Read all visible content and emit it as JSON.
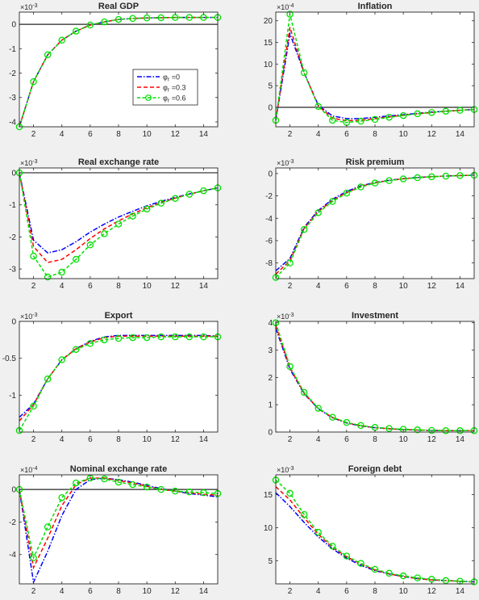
{
  "colors": {
    "background": "#f0f0f0",
    "axes_bg": "#ffffff",
    "axis": "#262626",
    "zero_line": "#262626",
    "series": [
      "#0000ff",
      "#ff0000",
      "#00e000"
    ]
  },
  "legend": {
    "placement": "inside-right",
    "entries": [
      "φ",
      "φ",
      "φ"
    ],
    "subscripts": [
      "r",
      "r",
      "r"
    ],
    "values": [
      "=0",
      "=0.3",
      "=0.6"
    ]
  },
  "chart_data": [
    {
      "type": "line",
      "title": "Real GDP",
      "exponent": [
        "×10",
        "-3"
      ],
      "x": [
        1,
        2,
        3,
        4,
        5,
        6,
        7,
        8,
        9,
        10,
        11,
        12,
        13,
        14,
        15
      ],
      "xlim": [
        1,
        15
      ],
      "ylim": [
        -4.2,
        0.5
      ],
      "xticks": [
        2,
        4,
        6,
        8,
        10,
        12,
        14
      ],
      "xtick_labels": [
        "2",
        "4",
        "6",
        "8",
        "10",
        "12",
        "14"
      ],
      "yticks": [
        -4,
        -3,
        -2,
        -1,
        0
      ],
      "ytick_labels": [
        "-4",
        "-3",
        "-2",
        "-1",
        "0"
      ],
      "zero_line": true,
      "legend": true,
      "series": [
        {
          "values": [
            -4.2,
            -2.35,
            -1.25,
            -0.65,
            -0.28,
            -0.03,
            0.1,
            0.2,
            0.24,
            0.26,
            0.27,
            0.28,
            0.28,
            0.28,
            0.28
          ]
        },
        {
          "values": [
            -4.2,
            -2.35,
            -1.25,
            -0.65,
            -0.28,
            -0.03,
            0.1,
            0.2,
            0.24,
            0.26,
            0.27,
            0.28,
            0.28,
            0.28,
            0.28
          ]
        },
        {
          "values": [
            -4.2,
            -2.35,
            -1.25,
            -0.65,
            -0.28,
            -0.03,
            0.1,
            0.2,
            0.24,
            0.26,
            0.27,
            0.28,
            0.28,
            0.28,
            0.28
          ]
        }
      ]
    },
    {
      "type": "line",
      "title": "Inflation",
      "exponent": [
        "×10",
        "-4"
      ],
      "x": [
        1,
        2,
        3,
        4,
        5,
        6,
        7,
        8,
        9,
        10,
        11,
        12,
        13,
        14,
        15
      ],
      "xlim": [
        1,
        15
      ],
      "ylim": [
        -4.5,
        22
      ],
      "xticks": [
        2,
        4,
        6,
        8,
        10,
        12,
        14
      ],
      "xtick_labels": [
        "2",
        "4",
        "6",
        "8",
        "10",
        "12",
        "14"
      ],
      "yticks": [
        -5,
        0,
        5,
        10,
        15,
        20
      ],
      "ytick_labels": [
        "-5",
        "0",
        "5",
        "10",
        "15",
        "20"
      ],
      "zero_line": true,
      "legend": false,
      "series": [
        {
          "values": [
            -3,
            17,
            8,
            0.5,
            -2,
            -2.6,
            -2.6,
            -2.3,
            -2,
            -1.7,
            -1.4,
            -1.1,
            -0.9,
            -0.7,
            -0.5
          ]
        },
        {
          "values": [
            -3,
            18.5,
            8,
            0.3,
            -2.5,
            -3.1,
            -3,
            -2.6,
            -2.2,
            -1.8,
            -1.5,
            -1.2,
            -0.9,
            -0.7,
            -0.5
          ]
        },
        {
          "values": [
            -3,
            21.5,
            8,
            0.2,
            -3,
            -3.5,
            -3.2,
            -2.8,
            -2.3,
            -1.9,
            -1.5,
            -1.2,
            -0.9,
            -0.7,
            -0.5
          ]
        }
      ]
    },
    {
      "type": "line",
      "title": "Real exchange rate",
      "exponent": [
        "×10",
        "-3"
      ],
      "x": [
        1,
        2,
        3,
        4,
        5,
        6,
        7,
        8,
        9,
        10,
        11,
        12,
        13,
        14,
        15
      ],
      "xlim": [
        1,
        15
      ],
      "ylim": [
        -3.3,
        0.15
      ],
      "xticks": [
        2,
        4,
        6,
        8,
        10,
        12,
        14
      ],
      "xtick_labels": [
        "2",
        "4",
        "6",
        "8",
        "10",
        "12",
        "14"
      ],
      "yticks": [
        -3,
        -2,
        -1,
        0
      ],
      "ytick_labels": [
        "-3",
        "-2",
        "-1",
        "0"
      ],
      "zero_line": true,
      "legend": false,
      "series": [
        {
          "values": [
            0,
            -2.1,
            -2.5,
            -2.4,
            -2.15,
            -1.85,
            -1.6,
            -1.38,
            -1.2,
            -1.03,
            -0.89,
            -0.77,
            -0.66,
            -0.56,
            -0.47
          ]
        },
        {
          "values": [
            0,
            -2.3,
            -2.8,
            -2.7,
            -2.4,
            -2.05,
            -1.75,
            -1.5,
            -1.28,
            -1.09,
            -0.93,
            -0.79,
            -0.67,
            -0.56,
            -0.47
          ]
        },
        {
          "values": [
            0,
            -2.6,
            -3.25,
            -3.1,
            -2.7,
            -2.25,
            -1.9,
            -1.6,
            -1.35,
            -1.13,
            -0.95,
            -0.8,
            -0.67,
            -0.56,
            -0.47
          ]
        }
      ]
    },
    {
      "type": "line",
      "title": "Risk premium",
      "exponent": [
        "×10",
        "-3"
      ],
      "x": [
        1,
        2,
        3,
        4,
        5,
        6,
        7,
        8,
        9,
        10,
        11,
        12,
        13,
        14,
        15
      ],
      "xlim": [
        1,
        15
      ],
      "ylim": [
        -9.4,
        0.5
      ],
      "xticks": [
        2,
        4,
        6,
        8,
        10,
        12,
        14
      ],
      "xtick_labels": [
        "2",
        "4",
        "6",
        "8",
        "10",
        "12",
        "14"
      ],
      "yticks": [
        -8,
        -6,
        -4,
        -2,
        0
      ],
      "ytick_labels": [
        "-8",
        "-6",
        "-4",
        "-2",
        "0"
      ],
      "zero_line": false,
      "legend": false,
      "series": [
        {
          "values": [
            -8.7,
            -7.6,
            -4.8,
            -3.3,
            -2.3,
            -1.6,
            -1.1,
            -0.8,
            -0.6,
            -0.45,
            -0.35,
            -0.28,
            -0.22,
            -0.18,
            -0.15
          ]
        },
        {
          "values": [
            -9,
            -7.8,
            -4.9,
            -3.4,
            -2.4,
            -1.7,
            -1.15,
            -0.82,
            -0.62,
            -0.47,
            -0.36,
            -0.28,
            -0.22,
            -0.18,
            -0.15
          ]
        },
        {
          "values": [
            -9.3,
            -8,
            -5,
            -3.5,
            -2.5,
            -1.75,
            -1.2,
            -0.85,
            -0.63,
            -0.48,
            -0.37,
            -0.29,
            -0.23,
            -0.18,
            -0.15
          ]
        }
      ]
    },
    {
      "type": "line",
      "title": "Export",
      "exponent": [
        "×10",
        "-3"
      ],
      "x": [
        1,
        2,
        3,
        4,
        5,
        6,
        7,
        8,
        9,
        10,
        11,
        12,
        13,
        14,
        15
      ],
      "xlim": [
        1,
        15
      ],
      "ylim": [
        -1.5,
        0
      ],
      "xticks": [
        2,
        4,
        6,
        8,
        10,
        12,
        14
      ],
      "xtick_labels": [
        "2",
        "4",
        "6",
        "8",
        "10",
        "12",
        "14"
      ],
      "yticks": [
        -1,
        -0.5,
        0
      ],
      "ytick_labels": [
        "-1",
        "-0.5",
        "0"
      ],
      "zero_line": false,
      "legend": false,
      "series": [
        {
          "values": [
            -1.3,
            -1.12,
            -0.78,
            -0.52,
            -0.37,
            -0.27,
            -0.21,
            -0.19,
            -0.19,
            -0.19,
            -0.19,
            -0.19,
            -0.19,
            -0.19,
            -0.2
          ]
        },
        {
          "values": [
            -1.35,
            -1.13,
            -0.78,
            -0.52,
            -0.37,
            -0.28,
            -0.22,
            -0.2,
            -0.2,
            -0.2,
            -0.2,
            -0.2,
            -0.2,
            -0.2,
            -0.2
          ]
        },
        {
          "values": [
            -1.48,
            -1.15,
            -0.78,
            -0.52,
            -0.38,
            -0.3,
            -0.25,
            -0.23,
            -0.22,
            -0.22,
            -0.21,
            -0.21,
            -0.21,
            -0.21,
            -0.21
          ]
        }
      ]
    },
    {
      "type": "line",
      "title": "Investment",
      "exponent": [
        "×10",
        "-3"
      ],
      "x": [
        1,
        2,
        3,
        4,
        5,
        6,
        7,
        8,
        9,
        10,
        11,
        12,
        13,
        14,
        15
      ],
      "xlim": [
        1,
        15
      ],
      "ylim": [
        0,
        4.05
      ],
      "xticks": [
        2,
        4,
        6,
        8,
        10,
        12,
        14
      ],
      "xtick_labels": [
        "2",
        "4",
        "6",
        "8",
        "10",
        "12",
        "14"
      ],
      "yticks": [
        0,
        1,
        2,
        3,
        4
      ],
      "ytick_labels": [
        "0",
        "1",
        "2",
        "3",
        "4"
      ],
      "zero_line": false,
      "legend": false,
      "series": [
        {
          "values": [
            3.8,
            2.3,
            1.4,
            0.85,
            0.52,
            0.33,
            0.22,
            0.16,
            0.12,
            0.09,
            0.07,
            0.06,
            0.05,
            0.05,
            0.05
          ]
        },
        {
          "values": [
            3.9,
            2.35,
            1.42,
            0.86,
            0.53,
            0.34,
            0.23,
            0.16,
            0.12,
            0.09,
            0.07,
            0.06,
            0.05,
            0.05,
            0.05
          ]
        },
        {
          "values": [
            4.0,
            2.4,
            1.45,
            0.87,
            0.54,
            0.35,
            0.24,
            0.17,
            0.13,
            0.1,
            0.08,
            0.06,
            0.05,
            0.05,
            0.05
          ]
        }
      ]
    },
    {
      "type": "line",
      "title": "Nominal exchange rate",
      "exponent": [
        "×10",
        "-4"
      ],
      "x": [
        1,
        2,
        3,
        4,
        5,
        6,
        7,
        8,
        9,
        10,
        11,
        12,
        13,
        14,
        15
      ],
      "xlim": [
        1,
        15
      ],
      "ylim": [
        -5.8,
        0.9
      ],
      "xticks": [
        2,
        4,
        6,
        8,
        10,
        12,
        14
      ],
      "xtick_labels": [
        "2",
        "4",
        "6",
        "8",
        "10",
        "12",
        "14"
      ],
      "yticks": [
        -4,
        -2,
        0
      ],
      "ytick_labels": [
        "-4",
        "-2",
        "0"
      ],
      "zero_line": true,
      "legend": false,
      "series": [
        {
          "values": [
            0,
            -5.7,
            -3.8,
            -1.6,
            0.0,
            0.6,
            0.7,
            0.6,
            0.45,
            0.25,
            0.05,
            -0.1,
            -0.25,
            -0.35,
            -0.45
          ]
        },
        {
          "values": [
            0,
            -4.8,
            -3.0,
            -1.0,
            0.3,
            0.7,
            0.7,
            0.55,
            0.4,
            0.2,
            0.0,
            -0.1,
            -0.2,
            -0.3,
            -0.35
          ]
        },
        {
          "values": [
            0,
            -4.2,
            -2.3,
            -0.5,
            0.4,
            0.7,
            0.65,
            0.45,
            0.3,
            0.15,
            0.0,
            -0.1,
            -0.15,
            -0.2,
            -0.25
          ]
        }
      ]
    },
    {
      "type": "line",
      "title": "Foreign debt",
      "exponent": [
        "×10",
        "-3"
      ],
      "x": [
        1,
        2,
        3,
        4,
        5,
        6,
        7,
        8,
        9,
        10,
        11,
        12,
        13,
        14,
        15
      ],
      "xlim": [
        1,
        15
      ],
      "ylim": [
        1.5,
        18
      ],
      "xticks": [
        2,
        4,
        6,
        8,
        10,
        12,
        14
      ],
      "xtick_labels": [
        "2",
        "4",
        "6",
        "8",
        "10",
        "12",
        "14"
      ],
      "yticks": [
        5,
        10,
        15
      ],
      "ytick_labels": [
        "5",
        "10",
        "15"
      ],
      "zero_line": false,
      "legend": false,
      "series": [
        {
          "values": [
            15.3,
            13.2,
            10.8,
            8.6,
            6.8,
            5.4,
            4.3,
            3.5,
            3.0,
            2.6,
            2.3,
            2.1,
            2.0,
            1.9,
            1.8
          ]
        },
        {
          "values": [
            16.2,
            14.2,
            11.5,
            9.0,
            7.0,
            5.6,
            4.5,
            3.6,
            3.0,
            2.6,
            2.3,
            2.1,
            2.0,
            1.9,
            1.8
          ]
        },
        {
          "values": [
            17.2,
            15.2,
            12.0,
            9.3,
            7.2,
            5.7,
            4.6,
            3.7,
            3.1,
            2.7,
            2.4,
            2.2,
            2.0,
            1.9,
            1.8
          ]
        }
      ]
    }
  ]
}
